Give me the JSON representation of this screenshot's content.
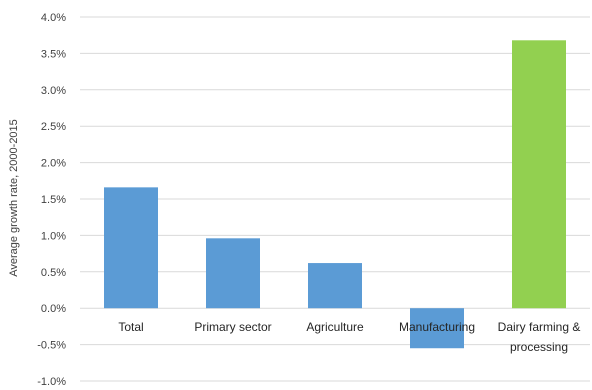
{
  "chart_data": {
    "type": "bar",
    "title": "",
    "xlabel": "",
    "ylabel": "Average growth rate, 2000-2015",
    "ylim": [
      -1.0,
      4.0
    ],
    "yticks": [
      "4.0%",
      "3.5%",
      "3.0%",
      "2.5%",
      "2.0%",
      "1.5%",
      "1.0%",
      "0.5%",
      "0.0%",
      "-0.5%",
      "-1.0%"
    ],
    "grid": true,
    "categories": [
      [
        "Total"
      ],
      [
        "Primary sector"
      ],
      [
        "Agriculture"
      ],
      [
        "Manufacturing"
      ],
      [
        "Dairy farming &",
        "processing"
      ]
    ],
    "values": [
      1.66,
      0.96,
      0.62,
      -0.55,
      3.68
    ],
    "colors": [
      "#5b9bd5",
      "#5b9bd5",
      "#5b9bd5",
      "#5b9bd5",
      "#92d050"
    ]
  }
}
